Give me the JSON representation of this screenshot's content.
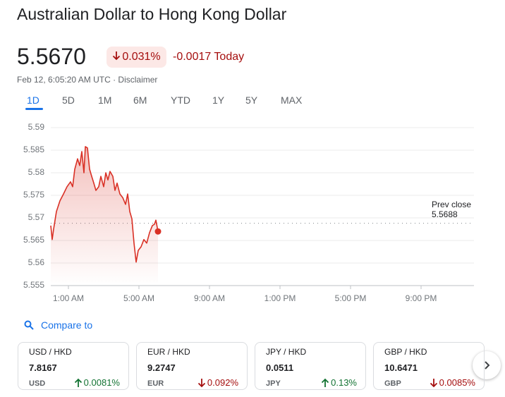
{
  "header": {
    "title": "Australian Dollar to Hong Kong Dollar",
    "price": "5.5670",
    "change_pct": "0.031%",
    "change_direction": "down",
    "change_abs": "-0.0017 Today",
    "timestamp": "Feb 12, 6:05:20 AM UTC ·",
    "disclaimer": "Disclaimer"
  },
  "tabs": {
    "items": [
      "1D",
      "5D",
      "1M",
      "6M",
      "YTD",
      "1Y",
      "5Y",
      "MAX"
    ],
    "selected": 0
  },
  "chart_data": {
    "type": "line",
    "x": [
      0.0,
      0.08,
      0.16,
      0.32,
      0.52,
      0.72,
      0.92,
      1.12,
      1.24,
      1.36,
      1.52,
      1.64,
      1.76,
      1.88,
      1.96,
      2.08,
      2.2,
      2.32,
      2.44,
      2.56,
      2.72,
      2.84,
      3.0,
      3.12,
      3.24,
      3.36,
      3.52,
      3.64,
      3.76,
      3.92,
      4.08,
      4.24,
      4.36,
      4.48,
      4.6,
      4.72,
      4.84,
      4.96,
      5.12,
      5.28,
      5.44,
      5.6,
      5.76,
      5.88,
      5.96,
      6.08
    ],
    "values": [
      5.5683,
      5.5652,
      5.5675,
      5.5714,
      5.5738,
      5.5753,
      5.5769,
      5.578,
      5.5769,
      5.5808,
      5.5831,
      5.5816,
      5.5847,
      5.58,
      5.5858,
      5.5855,
      5.5808,
      5.5792,
      5.5777,
      5.5761,
      5.5769,
      5.5792,
      5.5769,
      5.58,
      5.5784,
      5.5803,
      5.5792,
      5.5761,
      5.5777,
      5.5753,
      5.5745,
      5.573,
      5.5753,
      5.5714,
      5.5698,
      5.5644,
      5.5602,
      5.5628,
      5.5636,
      5.5652,
      5.5644,
      5.5667,
      5.5683,
      5.5686,
      5.5695,
      5.567
    ],
    "color": "#d93025",
    "xlim": [
      0,
      24
    ],
    "xticks": [
      {
        "value": 1,
        "label": "1:00 AM"
      },
      {
        "value": 5,
        "label": "5:00 AM"
      },
      {
        "value": 9,
        "label": "9:00 AM"
      },
      {
        "value": 13,
        "label": "1:00 PM"
      },
      {
        "value": 17,
        "label": "5:00 PM"
      },
      {
        "value": 21,
        "label": "9:00 PM"
      }
    ],
    "ylim": [
      5.555,
      5.59
    ],
    "yticks": [
      5.555,
      5.56,
      5.565,
      5.57,
      5.575,
      5.58,
      5.585,
      5.59
    ],
    "grid": true,
    "prev_close": {
      "label": "Prev close",
      "value": 5.5688
    }
  },
  "compare": {
    "title": "Compare to",
    "items": [
      {
        "pair": "USD / HKD",
        "price": "7.8167",
        "currency": "USD",
        "change": "0.0081%",
        "direction": "up"
      },
      {
        "pair": "EUR / HKD",
        "price": "9.2747",
        "currency": "EUR",
        "change": "0.092%",
        "direction": "down"
      },
      {
        "pair": "JPY / HKD",
        "price": "0.0511",
        "currency": "JPY",
        "change": "0.13%",
        "direction": "up"
      },
      {
        "pair": "GBP / HKD",
        "price": "10.6471",
        "currency": "GBP",
        "change": "0.0085%",
        "direction": "down"
      }
    ]
  }
}
